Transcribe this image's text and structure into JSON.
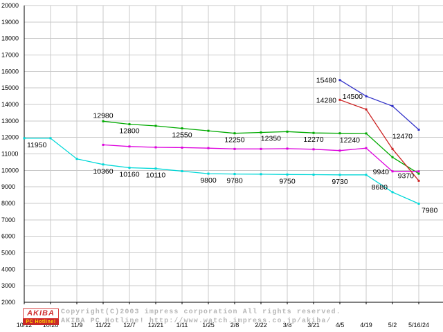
{
  "chart_data": {
    "type": "line",
    "title": "",
    "xlabel": "",
    "ylabel": "",
    "grid": true,
    "legend": false,
    "y_axis": {
      "min": 2000,
      "max": 20000,
      "step": 1000
    },
    "categories": [
      "10/12",
      "10/26",
      "11/9",
      "11/22",
      "12/7",
      "12/21",
      "1/11",
      "1/25",
      "2/8",
      "2/22",
      "3/8",
      "3/21",
      "4/5",
      "4/19",
      "5/2",
      "5/16/24"
    ],
    "series": [
      {
        "name": "cyan",
        "color": "#00d8d8",
        "values": [
          11950,
          11950,
          10700,
          10360,
          10160,
          10110,
          9950,
          9800,
          9780,
          9770,
          9750,
          9740,
          9730,
          9730,
          8680,
          7980
        ]
      },
      {
        "name": "green",
        "color": "#00aa00",
        "values": [
          null,
          null,
          null,
          12980,
          12800,
          12700,
          12550,
          12400,
          12250,
          12300,
          12350,
          12270,
          12250,
          12240,
          10800,
          9800
        ]
      },
      {
        "name": "magenta",
        "color": "#dd00dd",
        "values": [
          null,
          null,
          null,
          11550,
          11450,
          11400,
          11380,
          11350,
          11300,
          11300,
          11320,
          11280,
          11200,
          11350,
          9940,
          9940
        ]
      },
      {
        "name": "blue",
        "color": "#3030c8",
        "values": [
          null,
          null,
          null,
          null,
          null,
          null,
          null,
          null,
          null,
          null,
          null,
          null,
          15480,
          14500,
          13900,
          12470
        ]
      },
      {
        "name": "red",
        "color": "#cc2222",
        "values": [
          null,
          null,
          null,
          null,
          null,
          null,
          null,
          null,
          null,
          null,
          null,
          null,
          14280,
          13700,
          11300,
          9370
        ]
      }
    ],
    "point_labels": [
      {
        "series": 0,
        "index": 0,
        "text": "11950",
        "placement": "below-right"
      },
      {
        "series": 0,
        "index": 3,
        "text": "10360",
        "placement": "below"
      },
      {
        "series": 0,
        "index": 4,
        "text": "10160",
        "placement": "below"
      },
      {
        "series": 0,
        "index": 5,
        "text": "10110",
        "placement": "below"
      },
      {
        "series": 0,
        "index": 7,
        "text": "9800",
        "placement": "below"
      },
      {
        "series": 0,
        "index": 8,
        "text": "9780",
        "placement": "below"
      },
      {
        "series": 0,
        "index": 10,
        "text": "9750",
        "placement": "below"
      },
      {
        "series": 0,
        "index": 12,
        "text": "9730",
        "placement": "below"
      },
      {
        "series": 0,
        "index": 14,
        "text": "8680",
        "placement": "above-left"
      },
      {
        "series": 0,
        "index": 15,
        "text": "7980",
        "placement": "below-right"
      },
      {
        "series": 1,
        "index": 3,
        "text": "12980",
        "placement": "above"
      },
      {
        "series": 1,
        "index": 4,
        "text": "12800",
        "placement": "below"
      },
      {
        "series": 1,
        "index": 6,
        "text": "12550",
        "placement": "below"
      },
      {
        "series": 1,
        "index": 8,
        "text": "12250",
        "placement": "below"
      },
      {
        "series": 1,
        "index": 10,
        "text": "12350",
        "placement": "below-left"
      },
      {
        "series": 1,
        "index": 11,
        "text": "12270",
        "placement": "below"
      },
      {
        "series": 1,
        "index": 13,
        "text": "12240",
        "placement": "below-left"
      },
      {
        "series": 2,
        "index": 14,
        "text": "9940",
        "placement": "left"
      },
      {
        "series": 3,
        "index": 12,
        "text": "15480",
        "placement": "left"
      },
      {
        "series": 3,
        "index": 13,
        "text": "14500",
        "placement": "left"
      },
      {
        "series": 3,
        "index": 15,
        "text": "12470",
        "placement": "below-left"
      },
      {
        "series": 4,
        "index": 12,
        "text": "14280",
        "placement": "left"
      },
      {
        "series": 4,
        "index": 15,
        "text": "9370",
        "placement": "above-left"
      }
    ],
    "grid_color": "#c9c9c9",
    "axis_color": "#000000"
  },
  "footer": {
    "logo": {
      "line1": "AKIBA",
      "line2": "PC Hotline!"
    },
    "copyright_line1": "Copyright(C)2003 impress corporation All rights reserved.",
    "copyright_line2": "AKIBA PC Hotline!  http://www.watch.impress.co.jp/akiba/"
  }
}
